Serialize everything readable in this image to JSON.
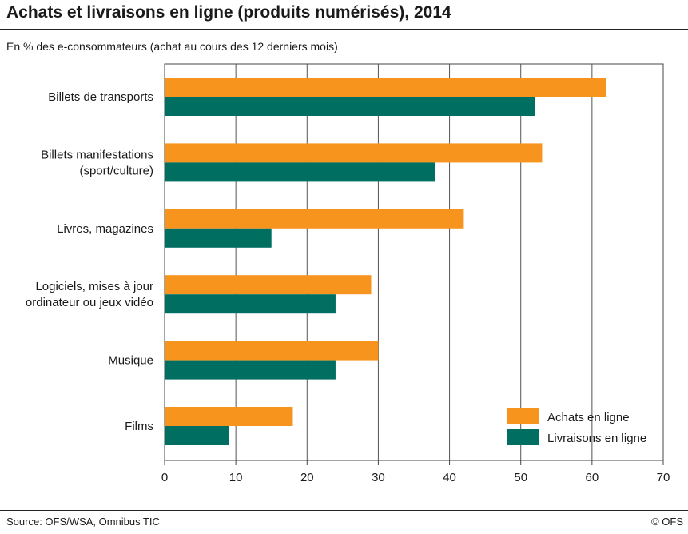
{
  "title": "Achats et livraisons en ligne (produits numérisés), 2014",
  "subtitle": "En % des e-consommateurs (achat au cours des 12 derniers mois)",
  "source": "Source: OFS/WSA, Omnibus TIC",
  "copyright": "© OFS",
  "colors": {
    "achats": "#f7941d",
    "livraisons": "#006f62",
    "grid": "#555555",
    "frame": "#444444"
  },
  "chart_data": {
    "type": "bar",
    "orientation": "horizontal",
    "categories": [
      [
        "Billets de transports"
      ],
      [
        "Billets manifestations",
        "(sport/culture)"
      ],
      [
        "Livres, magazines"
      ],
      [
        "Logiciels, mises à jour",
        "ordinateur ou jeux vidéo"
      ],
      [
        "Musique"
      ],
      [
        "Films"
      ]
    ],
    "series": [
      {
        "name": "Achats en ligne",
        "values": [
          62,
          53,
          42,
          29,
          30,
          18
        ]
      },
      {
        "name": "Livraisons en ligne",
        "values": [
          52,
          38,
          15,
          24,
          24,
          9
        ]
      }
    ],
    "xlim": [
      0,
      70
    ],
    "xticks": [
      0,
      10,
      20,
      30,
      40,
      50,
      60,
      70
    ],
    "grid": true,
    "legend": "bottom-right"
  }
}
